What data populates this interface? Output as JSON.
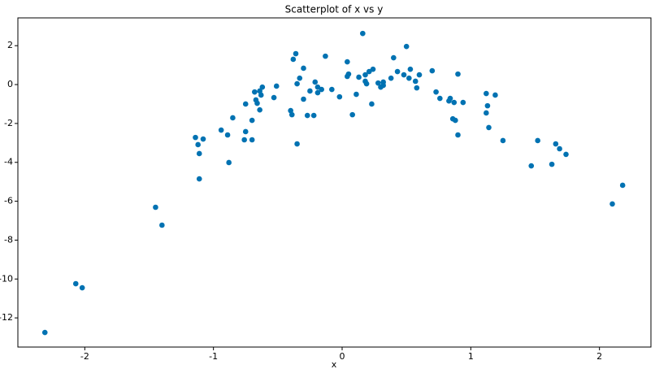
{
  "chart_data": {
    "type": "scatter",
    "title": "Scatterplot of x vs y",
    "x_label": "x",
    "color": "#0072b2",
    "x": [
      -2.31,
      -2.07,
      -2.02,
      -1.45,
      -1.4,
      -1.14,
      -1.12,
      -1.11,
      -1.08,
      -1.11,
      -0.94,
      -0.89,
      -0.85,
      -0.88,
      -0.76,
      -0.75,
      -0.75,
      -0.7,
      -0.7,
      -0.68,
      -0.67,
      -0.66,
      -0.64,
      -0.64,
      -0.63,
      -0.62,
      -0.53,
      -0.51,
      -0.4,
      -0.39,
      -0.38,
      -0.36,
      -0.35,
      -0.35,
      -0.33,
      -0.3,
      -0.3,
      -0.27,
      -0.25,
      -0.22,
      -0.21,
      -0.19,
      -0.19,
      -0.16,
      -0.13,
      -0.08,
      -0.02,
      0.04,
      0.04,
      0.05,
      0.08,
      0.11,
      0.13,
      0.16,
      0.18,
      0.18,
      0.19,
      0.21,
      0.23,
      0.24,
      0.28,
      0.3,
      0.32,
      0.32,
      0.38,
      0.4,
      0.43,
      0.48,
      0.5,
      0.52,
      0.53,
      0.57,
      0.58,
      0.6,
      0.7,
      0.73,
      0.76,
      0.83,
      0.84,
      0.87,
      0.86,
      0.88,
      0.9,
      0.9,
      0.94,
      1.12,
      1.13,
      1.12,
      1.14,
      1.19,
      1.25,
      1.47,
      1.52,
      1.63,
      1.66,
      1.69,
      1.74,
      2.1,
      2.18
    ],
    "values": [
      -12.75,
      -10.24,
      -10.45,
      -6.31,
      -7.23,
      -2.72,
      -3.09,
      -3.55,
      -2.8,
      -4.85,
      -2.34,
      -2.59,
      -1.71,
      -4.01,
      -2.84,
      -2.42,
      -1.0,
      -2.84,
      -1.84,
      -0.38,
      -0.79,
      -0.96,
      -1.3,
      -0.33,
      -0.54,
      -0.13,
      -0.67,
      -0.08,
      -1.34,
      -1.55,
      1.3,
      1.59,
      -3.05,
      0.04,
      0.33,
      0.84,
      -0.75,
      -1.59,
      -0.33,
      -1.59,
      0.13,
      -0.13,
      -0.42,
      -0.25,
      1.46,
      -0.25,
      -0.63,
      1.17,
      0.42,
      0.54,
      -1.55,
      -0.5,
      0.38,
      2.63,
      0.5,
      0.17,
      0.04,
      0.67,
      -1.0,
      0.79,
      0.08,
      -0.13,
      0.13,
      -0.04,
      0.33,
      1.38,
      0.67,
      0.5,
      1.96,
      0.33,
      0.79,
      0.17,
      -0.17,
      0.5,
      0.71,
      -0.38,
      -0.71,
      -0.84,
      -0.71,
      -0.92,
      -1.76,
      -1.84,
      0.54,
      -2.59,
      -0.92,
      -0.46,
      -1.09,
      -1.46,
      -2.21,
      -0.54,
      -2.88,
      -4.18,
      -2.88,
      -4.1,
      -3.05,
      -3.3,
      -3.59,
      -6.14,
      -5.18
    ],
    "xlim": [
      -2.52,
      2.4
    ],
    "ylim": [
      -13.5,
      3.43
    ],
    "xticks": [
      -2,
      -1,
      0,
      1,
      2
    ],
    "yticks": [
      2,
      0,
      -2,
      -4,
      -6,
      -8,
      -10,
      -12
    ]
  }
}
